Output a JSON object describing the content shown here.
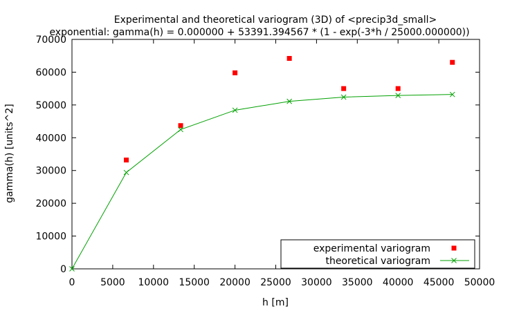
{
  "chart_data": {
    "type": "scatter",
    "title": "Experimental and theoretical variogram (3D) of <precip3d_small>",
    "subtitle": "exponential: gamma(h) = 0.000000 + 53391.394567 * (1 - exp(-3*h / 25000.000000))",
    "xlabel": "h [m]",
    "ylabel": "gamma(h) [units^2]",
    "xlim": [
      0,
      50000
    ],
    "ylim": [
      0,
      70000
    ],
    "xticks": [
      0,
      5000,
      10000,
      15000,
      20000,
      25000,
      30000,
      35000,
      40000,
      45000,
      50000
    ],
    "yticks": [
      0,
      10000,
      20000,
      30000,
      40000,
      50000,
      60000,
      70000
    ],
    "grid": false,
    "legend_position": "bottom-right",
    "series": [
      {
        "name": "experimental variogram",
        "style": "points",
        "marker": "square",
        "color": "#ff0000",
        "x": [
          6667,
          13333,
          20000,
          26667,
          33333,
          40000,
          46667
        ],
        "y": [
          33200,
          43700,
          59800,
          64200,
          55000,
          55000,
          63000
        ]
      },
      {
        "name": "theoretical variogram",
        "style": "linespoints",
        "marker": "x",
        "color": "#00a000",
        "x": [
          0,
          6667,
          13333,
          20000,
          26667,
          33333,
          40000,
          46667
        ],
        "y": [
          0,
          29400,
          42500,
          48400,
          51100,
          52400,
          52900,
          53200
        ]
      }
    ]
  }
}
